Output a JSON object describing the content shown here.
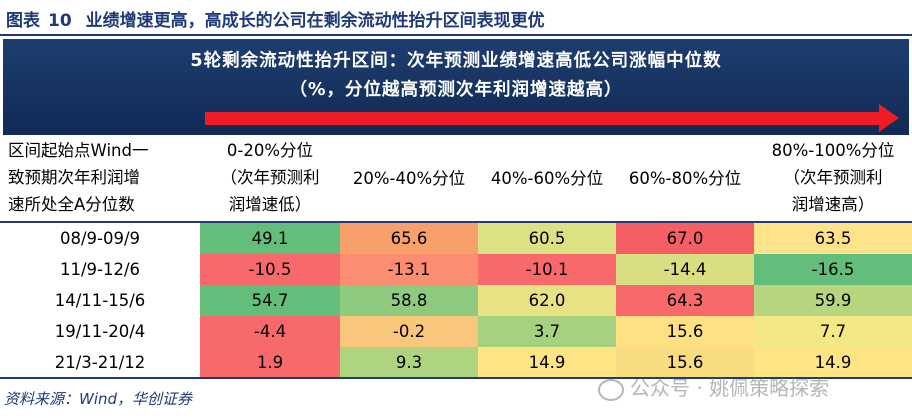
{
  "figure": {
    "label": "图表",
    "number": "10",
    "title": "业绩增速更高，高成长的公司在剩余流动性抬升区间表现更优"
  },
  "banner": {
    "line1": "5轮剩余流动性抬升区间：次年预测业绩增速高低公司涨幅中位数",
    "line2": "（%，分位越高预测次年利润增速越高）"
  },
  "table": {
    "row_header": [
      "区间起始点Wind一",
      "致预期次年利润增",
      "速所处全A分位数"
    ],
    "col1": [
      "0-20%分位",
      "（次年预测利",
      "润增速低）"
    ],
    "col2": "20%-40%分位",
    "col3": "40%-60%分位",
    "col4": "60%-80%分位",
    "col5": [
      "80%-100%分位",
      "（次年预测利",
      "润增速高）"
    ],
    "rows": [
      {
        "period": "08/9-09/9",
        "values": [
          "49.1",
          "65.6",
          "60.5",
          "67.0",
          "63.5"
        ]
      },
      {
        "period": "11/9-12/6",
        "values": [
          "-10.5",
          "-13.1",
          "-10.1",
          "-14.4",
          "-16.5"
        ]
      },
      {
        "period": "14/11-15/6",
        "values": [
          "54.7",
          "58.8",
          "62.0",
          "64.3",
          "59.9"
        ]
      },
      {
        "period": "19/11-20/4",
        "values": [
          "-4.4",
          "-0.2",
          "3.7",
          "15.6",
          "7.7"
        ]
      },
      {
        "period": "21/3-21/12",
        "values": [
          "1.9",
          "9.3",
          "14.9",
          "15.6",
          "14.9"
        ]
      }
    ],
    "colors": [
      [
        "#63be7b",
        "#f8a06b",
        "#dbe283",
        "#f55f63",
        "#ffe38a"
      ],
      [
        "#f8696b",
        "#fc8d72",
        "#f8696b",
        "#d7df82",
        "#63be7b"
      ],
      [
        "#63be7b",
        "#8fcb7e",
        "#e7e384",
        "#f8696b",
        "#b7d57f"
      ],
      [
        "#f8696b",
        "#f9c77c",
        "#a6d27f",
        "#ffe083",
        "#f2e885"
      ],
      [
        "#f8696b",
        "#aed47f",
        "#ffe484",
        "#f9dc82",
        "#ffe484"
      ]
    ]
  },
  "footer": {
    "source": "资料来源：Wind，华创证券"
  },
  "watermark": {
    "text": "公众号 · 姚佩策略探索"
  }
}
